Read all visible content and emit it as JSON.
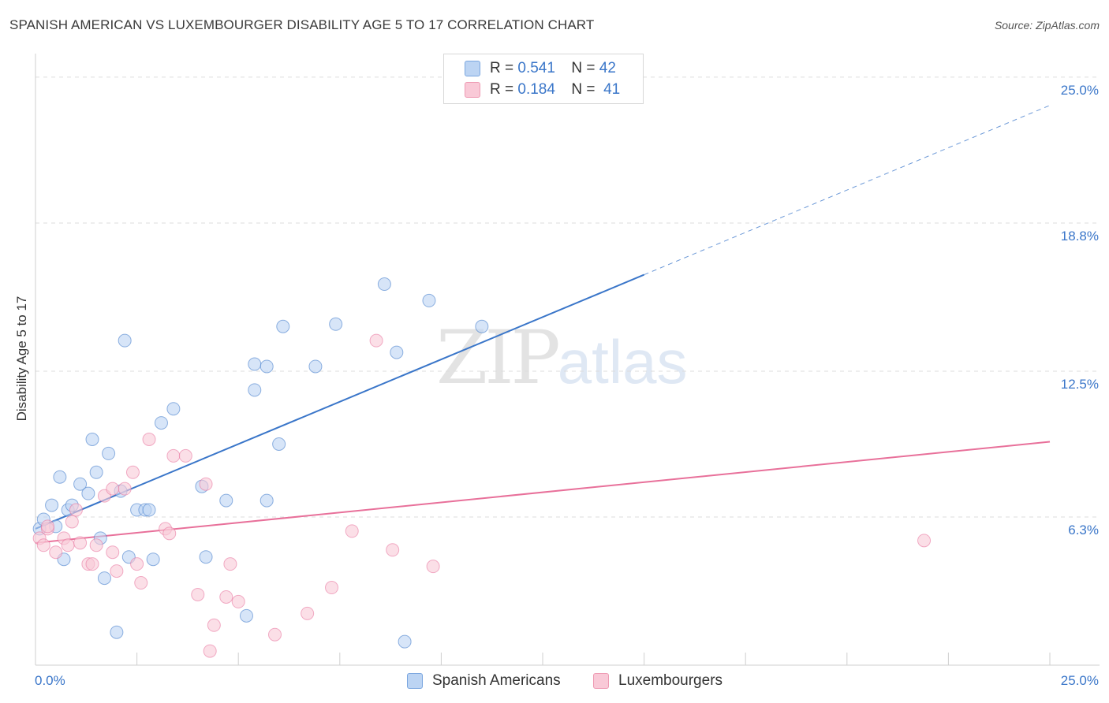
{
  "header": {
    "title": "SPANISH AMERICAN VS LUXEMBOURGER DISABILITY AGE 5 TO 17 CORRELATION CHART",
    "source": "Source: ZipAtlas.com"
  },
  "legend": {
    "rows": [
      {
        "r_label": "R =",
        "r_value": "0.541",
        "n_label": "N =",
        "n_value": "42"
      },
      {
        "r_label": "R =",
        "r_value": "0.184",
        "n_label": "N =",
        "n_value": "41"
      }
    ]
  },
  "watermark": {
    "zip": "ZIP",
    "atlas": "atlas"
  },
  "colors": {
    "blue": "#3a76c9",
    "blue_fill": "#bcd4f3",
    "pink": "#e8709a",
    "pink_fill": "#f9c9d7"
  },
  "chart_data": {
    "type": "scatter",
    "title": "SPANISH AMERICAN VS LUXEMBOURGER DISABILITY AGE 5 TO 17 CORRELATION CHART",
    "xlabel": "",
    "ylabel": "Disability Age 5 to 17",
    "xlim": [
      0,
      25
    ],
    "ylim": [
      0,
      25.6
    ],
    "x_tick_labels": [
      "0.0%",
      "25.0%"
    ],
    "y_ticks": [
      6.3,
      12.5,
      18.8,
      25.0
    ],
    "y_tick_labels": [
      "6.3%",
      "12.5%",
      "18.8%",
      "25.0%"
    ],
    "legend_position": "top-center",
    "series": [
      {
        "name": "Spanish Americans",
        "color": "#3a76c9",
        "fill": "#bcd4f3",
        "r": 0.541,
        "n": 42,
        "trend": {
          "x0": 0,
          "y0": 5.8,
          "x1": 15,
          "y1": 16.6,
          "dash_to_x": 25,
          "dash_to_y": 23.8
        },
        "points": [
          [
            0.1,
            5.8
          ],
          [
            0.2,
            6.2
          ],
          [
            0.4,
            6.8
          ],
          [
            0.5,
            5.9
          ],
          [
            0.6,
            8.0
          ],
          [
            0.7,
            4.5
          ],
          [
            0.8,
            6.6
          ],
          [
            0.9,
            6.8
          ],
          [
            1.1,
            7.7
          ],
          [
            1.3,
            7.3
          ],
          [
            1.4,
            9.6
          ],
          [
            1.5,
            8.2
          ],
          [
            1.6,
            5.4
          ],
          [
            1.7,
            3.7
          ],
          [
            1.8,
            9.0
          ],
          [
            2.0,
            1.4
          ],
          [
            2.1,
            7.4
          ],
          [
            2.2,
            13.8
          ],
          [
            2.3,
            4.6
          ],
          [
            2.5,
            6.6
          ],
          [
            2.7,
            6.6
          ],
          [
            2.8,
            6.6
          ],
          [
            2.9,
            4.5
          ],
          [
            3.1,
            10.3
          ],
          [
            3.4,
            10.9
          ],
          [
            4.1,
            7.6
          ],
          [
            4.2,
            4.6
          ],
          [
            4.7,
            7.0
          ],
          [
            5.2,
            2.1
          ],
          [
            5.4,
            11.7
          ],
          [
            5.4,
            12.8
          ],
          [
            5.7,
            7.0
          ],
          [
            5.7,
            12.7
          ],
          [
            6.0,
            9.4
          ],
          [
            6.1,
            14.4
          ],
          [
            6.9,
            12.7
          ],
          [
            7.4,
            14.5
          ],
          [
            8.6,
            16.2
          ],
          [
            8.9,
            13.3
          ],
          [
            9.1,
            1.0
          ],
          [
            9.7,
            15.5
          ],
          [
            11.0,
            14.4
          ]
        ]
      },
      {
        "name": "Luxembourgers",
        "color": "#e8709a",
        "fill": "#f9c9d7",
        "r": 0.184,
        "n": 41,
        "trend": {
          "x0": 0,
          "y0": 5.2,
          "x1": 25,
          "y1": 9.5
        },
        "points": [
          [
            0.1,
            5.4
          ],
          [
            0.2,
            5.1
          ],
          [
            0.3,
            5.8
          ],
          [
            0.5,
            4.8
          ],
          [
            0.7,
            5.4
          ],
          [
            0.8,
            5.1
          ],
          [
            0.9,
            6.1
          ],
          [
            1.0,
            6.6
          ],
          [
            1.1,
            5.2
          ],
          [
            1.3,
            4.3
          ],
          [
            1.4,
            4.3
          ],
          [
            1.5,
            5.1
          ],
          [
            1.7,
            7.2
          ],
          [
            1.9,
            4.8
          ],
          [
            2.0,
            4.0
          ],
          [
            2.2,
            7.5
          ],
          [
            2.4,
            8.2
          ],
          [
            2.5,
            4.3
          ],
          [
            2.6,
            3.5
          ],
          [
            2.8,
            9.6
          ],
          [
            3.2,
            5.8
          ],
          [
            3.3,
            5.6
          ],
          [
            3.4,
            8.9
          ],
          [
            3.7,
            8.9
          ],
          [
            4.0,
            3.0
          ],
          [
            4.2,
            7.7
          ],
          [
            4.3,
            0.6
          ],
          [
            4.4,
            1.7
          ],
          [
            4.7,
            2.9
          ],
          [
            4.8,
            4.3
          ],
          [
            5.0,
            2.7
          ],
          [
            5.9,
            1.3
          ],
          [
            6.7,
            2.2
          ],
          [
            7.3,
            3.3
          ],
          [
            7.8,
            5.7
          ],
          [
            8.4,
            13.8
          ],
          [
            8.8,
            4.9
          ],
          [
            9.8,
            4.2
          ],
          [
            1.9,
            7.5
          ],
          [
            21.9,
            5.3
          ],
          [
            0.3,
            5.9
          ]
        ]
      }
    ]
  }
}
